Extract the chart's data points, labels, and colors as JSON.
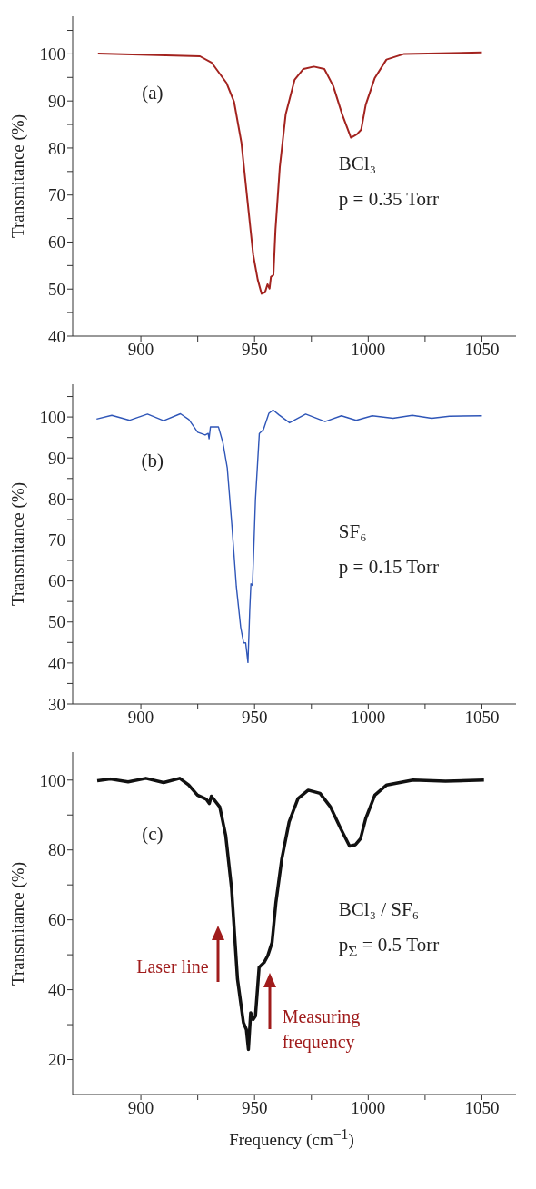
{
  "chart_data": [
    {
      "type": "line",
      "ylabel": "Transmitance (%)",
      "color": "#a3231f",
      "x": [
        881.1,
        926,
        931.2,
        937.7,
        941,
        944.2,
        946.8,
        949.4,
        951.4,
        953.1,
        954.6,
        955.7,
        956.6,
        957.2,
        958.3,
        959.2,
        961.1,
        963.7,
        967.6,
        971.5,
        976.1,
        980.7,
        984.6,
        988.5,
        992.4,
        995,
        996.9,
        998.9,
        1002.8,
        1008,
        1015.8,
        1050
      ],
      "values": [
        100.1,
        99.5,
        98.1,
        93.8,
        89.8,
        81.2,
        69.2,
        57.3,
        52,
        49,
        49.3,
        51,
        50.1,
        52.6,
        53,
        62.6,
        75.9,
        87.2,
        94.5,
        96.8,
        97.3,
        96.8,
        93.2,
        87.2,
        82.2,
        82.9,
        83.9,
        89.2,
        94.8,
        98.8,
        100,
        100.3
      ],
      "xlim": [
        870,
        1065
      ],
      "ylim": [
        40,
        108
      ],
      "xticks": [
        {
          "value": 875,
          "label": null
        },
        900,
        {
          "value": 925,
          "label": null
        },
        950,
        {
          "value": 975,
          "label": null
        },
        1000,
        {
          "value": 1025,
          "label": null
        },
        1050
      ],
      "yticks": [
        40,
        {
          "value": 45,
          "label": null
        },
        50,
        {
          "value": 55,
          "label": null
        },
        60,
        {
          "value": 65,
          "label": null
        },
        70,
        {
          "value": 75,
          "label": null
        },
        80,
        {
          "value": 85,
          "label": null
        },
        90,
        {
          "value": 95,
          "label": null
        },
        100,
        {
          "value": 105,
          "label": null
        }
      ],
      "annotations": [
        "(a)",
        "BCl₃",
        "p = 0.35 Torr"
      ]
    },
    {
      "type": "line",
      "ylabel": "Transmitance (%)",
      "color": "#2f56b8",
      "x": [
        880.5,
        887.2,
        895.1,
        902.9,
        910,
        917.4,
        921.1,
        925,
        928.3,
        929.6,
        930,
        930.6,
        934.1,
        936.1,
        938,
        940,
        942,
        943.9,
        945.2,
        946.1,
        947.1,
        947.9,
        948.4,
        949.1,
        950.4,
        952.1,
        953.9,
        956.3,
        958.2,
        960.8,
        965.4,
        972.5,
        981,
        988.2,
        994.7,
        1001.8,
        1010.9,
        1019.4,
        1027.9,
        1035.7,
        1050
      ],
      "values": [
        99.5,
        100.4,
        99.2,
        100.7,
        99.1,
        100.8,
        99.4,
        96.3,
        95.6,
        96,
        94.7,
        97.6,
        97.6,
        93.7,
        87.6,
        73.8,
        58.6,
        48.7,
        44.9,
        44.9,
        40.1,
        53.2,
        59.3,
        58.9,
        79.9,
        96,
        96.9,
        100.9,
        101.7,
        100.5,
        98.6,
        100.7,
        98.9,
        100.3,
        99.2,
        100.3,
        99.7,
        100.4,
        99.7,
        100.2,
        100.3
      ],
      "xlim": [
        870,
        1065
      ],
      "ylim": [
        30,
        108
      ],
      "xticks": [
        {
          "value": 875,
          "label": null
        },
        900,
        {
          "value": 925,
          "label": null
        },
        950,
        {
          "value": 975,
          "label": null
        },
        1000,
        {
          "value": 1025,
          "label": null
        },
        1050
      ],
      "yticks": [
        30,
        {
          "value": 35,
          "label": null
        },
        40,
        {
          "value": 45,
          "label": null
        },
        50,
        {
          "value": 55,
          "label": null
        },
        60,
        {
          "value": 65,
          "label": null
        },
        70,
        {
          "value": 75,
          "label": null
        },
        80,
        {
          "value": 85,
          "label": null
        },
        90,
        {
          "value": 95,
          "label": null
        },
        100,
        {
          "value": 105,
          "label": null
        }
      ],
      "annotations": [
        "(b)",
        "SF₆",
        "p = 0.15 Torr"
      ]
    },
    {
      "type": "line",
      "xlabel": "Frequency (cm$^{−1}$)",
      "ylabel": "Transmitance (%)",
      "color": "#111111",
      "x": [
        880.8,
        886.6,
        894.4,
        902.2,
        910,
        917.1,
        921,
        924.9,
        928.8,
        930.1,
        931,
        934.7,
        937.3,
        939.9,
        942.5,
        945.1,
        946.4,
        947.3,
        948.3,
        949.4,
        950.4,
        952,
        954.2,
        955.8,
        957.7,
        959.4,
        962,
        965.2,
        969.1,
        973.6,
        978.8,
        983.4,
        987.9,
        991.8,
        994.4,
        996.6,
        998.9,
        1002.9,
        1008.1,
        1019.7,
        1034,
        1050.9
      ],
      "values": [
        99.8,
        100.3,
        99.5,
        100.5,
        99.3,
        100.5,
        98.6,
        95.7,
        94.5,
        93.3,
        95.4,
        92.3,
        84.2,
        68.9,
        43,
        30.6,
        28.6,
        22.9,
        33.4,
        31.5,
        32.5,
        46.4,
        47.8,
        49.7,
        53.5,
        65,
        77.5,
        88,
        94.7,
        97.1,
        96.2,
        92.3,
        86.1,
        81.1,
        81.5,
        83.2,
        89,
        95.7,
        98.6,
        100,
        99.7,
        100
      ],
      "xlim": [
        870,
        1065
      ],
      "ylim": [
        10,
        108
      ],
      "xticks": [
        {
          "value": 875,
          "label": null
        },
        900,
        {
          "value": 925,
          "label": null
        },
        950,
        {
          "value": 975,
          "label": null
        },
        1000,
        {
          "value": 1025,
          "label": null
        },
        1050
      ],
      "yticks": [
        20,
        {
          "value": 30,
          "label": null
        },
        40,
        {
          "value": 50,
          "label": null
        },
        60,
        {
          "value": 70,
          "label": null
        },
        80,
        {
          "value": 90,
          "label": null
        },
        100
      ],
      "annotations": [
        "(c)",
        "BCl₃ / SF₆",
        "p$_{Σ}$ = 0.5 Torr",
        "Laser line",
        "Measuring frequency"
      ]
    }
  ]
}
